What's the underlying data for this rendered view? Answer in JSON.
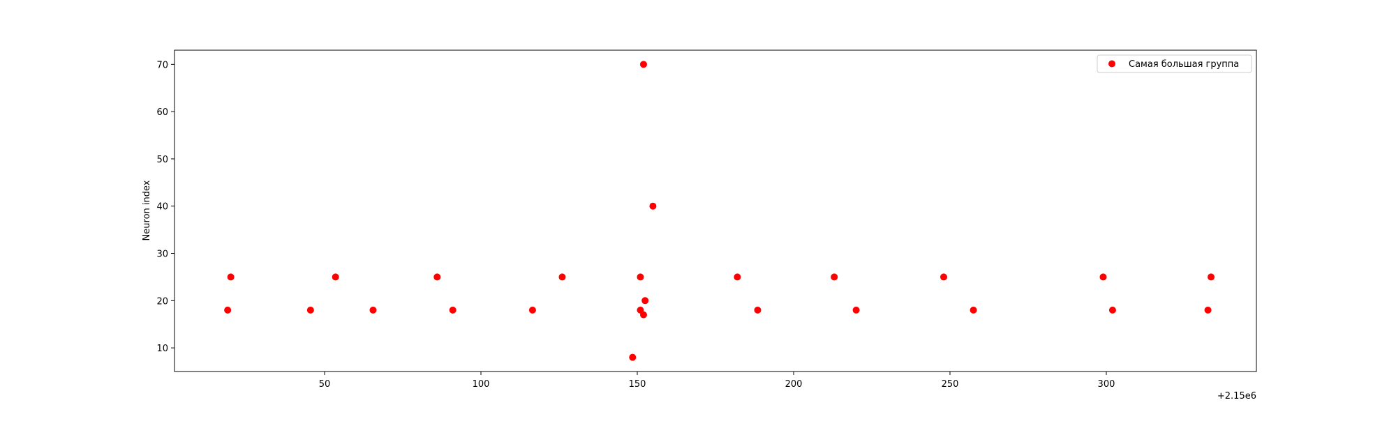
{
  "chart_data": {
    "type": "scatter",
    "title": "",
    "xlabel": "",
    "ylabel": "Neuron index",
    "x_offset_label": "+2.15e6",
    "xlim": [
      2,
      348
    ],
    "ylim": [
      5,
      73
    ],
    "xticks": [
      50,
      100,
      150,
      200,
      250,
      300
    ],
    "yticks": [
      10,
      20,
      30,
      40,
      50,
      60,
      70
    ],
    "grid": false,
    "legend_position": "upper right",
    "series": [
      {
        "name": "Самая большая группа",
        "color": "#ff0000",
        "points": [
          {
            "x": 19,
            "y": 18
          },
          {
            "x": 20,
            "y": 25
          },
          {
            "x": 45.5,
            "y": 18
          },
          {
            "x": 53.5,
            "y": 25
          },
          {
            "x": 65.5,
            "y": 18
          },
          {
            "x": 86,
            "y": 25
          },
          {
            "x": 91,
            "y": 18
          },
          {
            "x": 116.5,
            "y": 18
          },
          {
            "x": 126,
            "y": 25
          },
          {
            "x": 148.5,
            "y": 8
          },
          {
            "x": 151,
            "y": 18
          },
          {
            "x": 151,
            "y": 25
          },
          {
            "x": 152,
            "y": 17
          },
          {
            "x": 152,
            "y": 70
          },
          {
            "x": 152.5,
            "y": 20
          },
          {
            "x": 155,
            "y": 40
          },
          {
            "x": 182,
            "y": 25
          },
          {
            "x": 188.5,
            "y": 18
          },
          {
            "x": 213,
            "y": 25
          },
          {
            "x": 220,
            "y": 18
          },
          {
            "x": 248,
            "y": 25
          },
          {
            "x": 257.5,
            "y": 18
          },
          {
            "x": 299,
            "y": 25
          },
          {
            "x": 302,
            "y": 18
          },
          {
            "x": 332.5,
            "y": 18
          },
          {
            "x": 333.5,
            "y": 25
          }
        ]
      }
    ]
  }
}
